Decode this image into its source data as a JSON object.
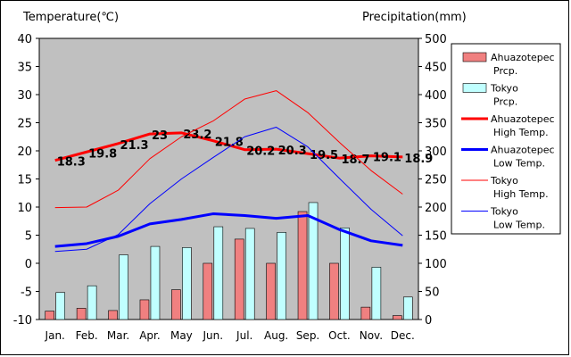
{
  "chart_data": {
    "type": "bar",
    "ylabel_left": "Temperature(℃)",
    "ylabel_right": "Precipitation(mm)",
    "categories": [
      "Jan.",
      "Feb.",
      "Mar.",
      "Apr.",
      "May",
      "Jun.",
      "Jul.",
      "Aug.",
      "Sep.",
      "Oct.",
      "Nov.",
      "Dec."
    ],
    "ylim_left": [
      -10,
      40
    ],
    "yticks_left": [
      -10,
      -5,
      0,
      5,
      10,
      15,
      20,
      25,
      30,
      35,
      40
    ],
    "ylim_right": [
      0,
      500
    ],
    "yticks_right": [
      0,
      50,
      100,
      150,
      200,
      250,
      300,
      350,
      400,
      450,
      500
    ],
    "grid": false,
    "legend_position": "right",
    "bar_series": [
      {
        "name": "Ahuazotepec Prcp.",
        "color": "#f08080",
        "values": [
          15,
          20,
          16,
          35,
          53,
          100,
          143,
          100,
          192,
          100,
          22,
          7
        ]
      },
      {
        "name": "Tokyo Prcp.",
        "color": "#c0ffff",
        "values": [
          48,
          60,
          115,
          130,
          128,
          165,
          162,
          155,
          208,
          163,
          93,
          40
        ]
      }
    ],
    "line_series": [
      {
        "name": "Ahuazotepec High Temp.",
        "color": "#ff0000",
        "width": 3,
        "values": [
          18.3,
          19.8,
          21.3,
          23.0,
          23.2,
          21.8,
          20.2,
          20.3,
          19.5,
          18.7,
          19.1,
          18.9
        ],
        "labels": [
          "18.3",
          "19.8",
          "21.3",
          "23",
          "23.2",
          "21.8",
          "20.2",
          "20.3",
          "19.5",
          "18.7",
          "19.1",
          "18.9"
        ]
      },
      {
        "name": "Ahuazotepec Low Temp.",
        "color": "#0000ff",
        "width": 3,
        "values": [
          3.0,
          3.5,
          4.8,
          7.0,
          7.8,
          8.8,
          8.5,
          8.0,
          8.5,
          6.0,
          4.0,
          3.2
        ]
      },
      {
        "name": "Tokyo High Temp.",
        "color": "#ff0000",
        "width": 1,
        "values": [
          9.9,
          10.0,
          13.0,
          18.6,
          22.5,
          25.3,
          29.2,
          30.7,
          26.8,
          21.5,
          16.5,
          12.3
        ]
      },
      {
        "name": "Tokyo Low Temp.",
        "color": "#0000ff",
        "width": 1,
        "values": [
          2.1,
          2.5,
          5.1,
          10.6,
          15.0,
          18.8,
          22.5,
          24.2,
          20.7,
          15.1,
          9.6,
          4.9
        ]
      }
    ],
    "legend": [
      {
        "label": "Ahuazotepec Prcp.",
        "kind": "bar",
        "color": "#f08080"
      },
      {
        "label": "Tokyo Prcp.",
        "kind": "bar",
        "color": "#c0ffff"
      },
      {
        "label": "Ahuazotepec High Temp.",
        "kind": "line",
        "color": "#ff0000",
        "width": 3
      },
      {
        "label": "Ahuazotepec Low Temp.",
        "kind": "line",
        "color": "#0000ff",
        "width": 3
      },
      {
        "label": "Tokyo High Temp.",
        "kind": "line",
        "color": "#ff0000",
        "width": 1
      },
      {
        "label": "Tokyo Low Temp.",
        "kind": "line",
        "color": "#0000ff",
        "width": 1
      }
    ],
    "plot_background": "#c0c0c0"
  }
}
